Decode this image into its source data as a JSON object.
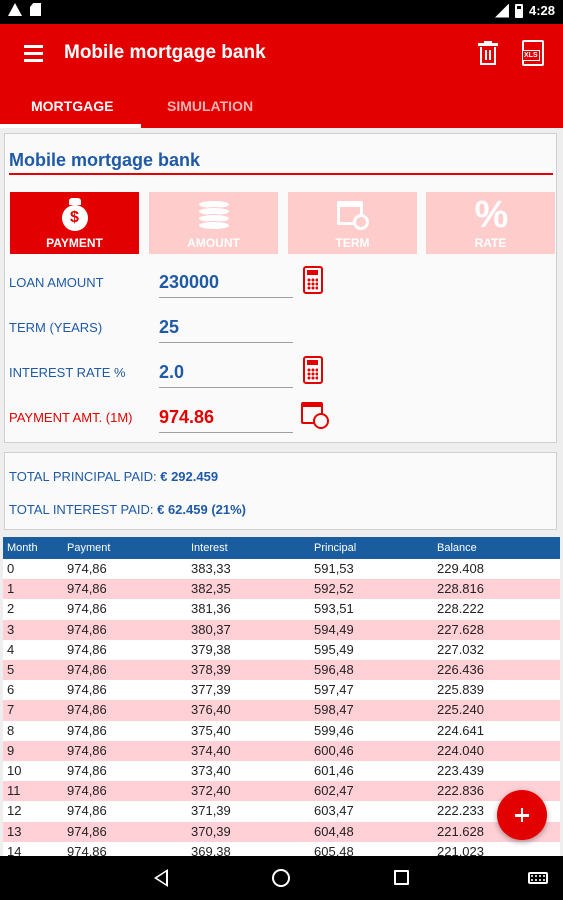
{
  "status_bar": {
    "time": "4:28"
  },
  "app_bar": {
    "title": "Mobile mortgage bank"
  },
  "tabs": [
    {
      "label": "MORTGAGE"
    },
    {
      "label": "SIMULATION"
    }
  ],
  "card": {
    "title": "Mobile mortgage bank",
    "modes": [
      {
        "label": "PAYMENT",
        "icon": "money-bag-icon",
        "active": true
      },
      {
        "label": "AMOUNT",
        "icon": "coins-icon",
        "active": false
      },
      {
        "label": "TERM",
        "icon": "calendar-clock-icon",
        "active": false
      },
      {
        "label": "RATE",
        "icon": "percent-icon",
        "active": false
      }
    ],
    "money_bag_symbol": "$",
    "percent_symbol": "%",
    "fields": {
      "loan_amount": {
        "label": "LOAN AMOUNT",
        "value": "230000"
      },
      "term": {
        "label": "TERM (YEARS)",
        "value": "25"
      },
      "interest_rate": {
        "label": "INTEREST RATE %",
        "value": "2.0"
      },
      "payment": {
        "label": "PAYMENT AMT. (1M)",
        "value": "974.86"
      }
    }
  },
  "totals": {
    "principal_label": "TOTAL PRINCIPAL PAID:",
    "principal_value": "€ 292.459",
    "interest_label": "TOTAL INTEREST PAID:",
    "interest_value": "€ 62.459 (21%)"
  },
  "table": {
    "headers": [
      "Month",
      "Payment",
      "Interest",
      "Principal",
      "Balance"
    ],
    "rows": [
      [
        "0",
        "974,86",
        "383,33",
        "591,53",
        "229.408"
      ],
      [
        "1",
        "974,86",
        "382,35",
        "592,52",
        "228.816"
      ],
      [
        "2",
        "974,86",
        "381,36",
        "593,51",
        "228.222"
      ],
      [
        "3",
        "974,86",
        "380,37",
        "594,49",
        "227.628"
      ],
      [
        "4",
        "974,86",
        "379,38",
        "595,49",
        "227.032"
      ],
      [
        "5",
        "974,86",
        "378,39",
        "596,48",
        "226.436"
      ],
      [
        "6",
        "974,86",
        "377,39",
        "597,47",
        "225.839"
      ],
      [
        "7",
        "974,86",
        "376,40",
        "598,47",
        "225.240"
      ],
      [
        "8",
        "974,86",
        "375,40",
        "599,46",
        "224.641"
      ],
      [
        "9",
        "974,86",
        "374,40",
        "600,46",
        "224.040"
      ],
      [
        "10",
        "974,86",
        "373,40",
        "601,46",
        "223.439"
      ],
      [
        "11",
        "974,86",
        "372,40",
        "602,47",
        "222.836"
      ],
      [
        "12",
        "974,86",
        "371,39",
        "603,47",
        "222.233"
      ],
      [
        "13",
        "974,86",
        "370,39",
        "604,48",
        "221.628"
      ],
      [
        "14",
        "974,86",
        "369,38",
        "605,48",
        "221.023"
      ]
    ]
  },
  "colors": {
    "primary": "#e20000",
    "accent_blue": "#1f5aa6",
    "header_blue": "#1a5d9e",
    "row_alt": "#ffd0d6"
  }
}
